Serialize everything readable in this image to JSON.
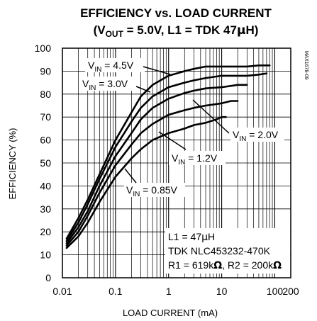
{
  "chart_data": {
    "type": "line",
    "title": "EFFICIENCY vs. LOAD CURRENT",
    "subtitle": {
      "prefix": "(V",
      "sub": "OUT",
      "rest": " = 5.0V, L1 = TDK 47",
      "mu": "µ",
      "end": "H)"
    },
    "figure_id": "MAX1678-09",
    "xlabel": "LOAD CURRENT (mA)",
    "ylabel": "EFFICIENCY (%)",
    "xscale": "log",
    "xlim": [
      0.01,
      200
    ],
    "ylim": [
      0,
      100
    ],
    "grid": true,
    "x_ticks": [
      0.01,
      0.1,
      1,
      10,
      100,
      200
    ],
    "x_tick_labels": [
      "0.01",
      "0.1",
      "1",
      "10",
      "100",
      "200"
    ],
    "y_ticks": [
      0,
      10,
      20,
      30,
      40,
      50,
      60,
      70,
      80,
      90,
      100
    ],
    "y_tick_labels": [
      "0",
      "10",
      "20",
      "30",
      "40",
      "50",
      "60",
      "70",
      "80",
      "90",
      "100"
    ],
    "series": [
      {
        "name": "V_IN = 4.5V",
        "label_main": "V",
        "label_sub": "IN",
        "label_rest": " = 4.5V",
        "x": [
          0.012,
          0.02,
          0.03,
          0.05,
          0.1,
          0.2,
          0.3,
          0.5,
          1,
          2,
          3,
          5,
          10,
          20,
          30,
          50,
          80
        ],
        "y": [
          17,
          26,
          34,
          45,
          60,
          72,
          79,
          84,
          88,
          90,
          91,
          92,
          92,
          92,
          92,
          92.5,
          92.5
        ]
      },
      {
        "name": "V_IN = 3.0V",
        "label_main": "V",
        "label_sub": "IN",
        "label_rest": " = 3.0V",
        "x": [
          0.012,
          0.02,
          0.03,
          0.05,
          0.1,
          0.2,
          0.3,
          0.5,
          1,
          2,
          3,
          5,
          10,
          20,
          30,
          50,
          70
        ],
        "y": [
          16,
          24,
          32,
          43,
          57,
          68,
          74,
          79,
          83,
          85,
          86,
          87,
          88,
          88,
          88,
          88.5,
          89
        ]
      },
      {
        "name": "V_IN = 2.0V",
        "label_main": "V",
        "label_sub": "IN",
        "label_rest": " = 2.0V",
        "x": [
          0.012,
          0.02,
          0.03,
          0.05,
          0.1,
          0.2,
          0.3,
          0.5,
          1,
          2,
          3,
          5,
          10,
          20,
          30
        ],
        "y": [
          15,
          22,
          29,
          40,
          53,
          63,
          69,
          74,
          78,
          80.5,
          81.5,
          82.5,
          83,
          84,
          84
        ]
      },
      {
        "name": "V_IN = 1.2V",
        "label_main": "V",
        "label_sub": "IN",
        "label_rest": " = 1.2V",
        "x": [
          0.012,
          0.02,
          0.03,
          0.05,
          0.1,
          0.2,
          0.3,
          0.5,
          1,
          2,
          3,
          5,
          10,
          15,
          20
        ],
        "y": [
          14,
          20,
          27,
          37,
          49,
          58,
          63,
          67,
          71,
          73,
          74,
          75,
          76,
          77,
          77
        ]
      },
      {
        "name": "V_IN = 0.85V",
        "label_main": "V",
        "label_sub": "IN",
        "label_rest": " = 0.85V",
        "x": [
          0.012,
          0.02,
          0.03,
          0.05,
          0.1,
          0.2,
          0.3,
          0.5,
          1,
          2,
          3,
          5,
          8,
          10,
          12
        ],
        "y": [
          13,
          18,
          24,
          33,
          44,
          52,
          56,
          60,
          63,
          65,
          66.5,
          67.5,
          69,
          70,
          70
        ]
      }
    ],
    "annotations": {
      "line1": {
        "text": "L1 = 47",
        "mu": "µ",
        "end": "H"
      },
      "line2": {
        "text": "TDK NLC453232-470K"
      },
      "line3": {
        "a": "R1 = 619k",
        "omega": "Ω",
        "b": ", R2 = 200k",
        "omega2": "Ω"
      }
    }
  }
}
